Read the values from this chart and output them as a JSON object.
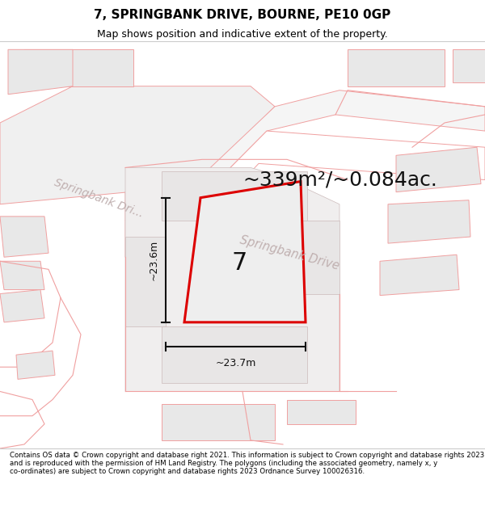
{
  "title": "7, SPRINGBANK DRIVE, BOURNE, PE10 0GP",
  "subtitle": "Map shows position and indicative extent of the property.",
  "area_text": "~339m²/~0.084ac.",
  "label_7": "7",
  "dim_height": "~23.6m",
  "dim_width": "~23.7m",
  "road_label_upper": "Springbank Dri...",
  "road_label_lower": "Springbank Drive",
  "footer": "Contains OS data © Crown copyright and database right 2021. This information is subject to Crown copyright and database rights 2023 and is reproduced with the permission of HM Land Registry. The polygons (including the associated geometry, namely x, y co-ordinates) are subject to Crown copyright and database rights 2023 Ordnance Survey 100026316.",
  "bg_color": "#ffffff",
  "map_bg": "#ffffff",
  "building_fill": "#e8e8e8",
  "building_edge": "#d0b8b8",
  "road_fill": "#ffffff",
  "road_edge": "#d0b0b0",
  "pink_line": "#f0a0a0",
  "plot_fill": "#eeeeee",
  "plot_border": "#dd0000",
  "dim_color": "#111111",
  "road_text_color": "#c0b0b0",
  "title_color": "#000000",
  "footer_color": "#000000",
  "separator_color": "#cccccc",
  "title_fontsize": 11,
  "subtitle_fontsize": 9,
  "area_fontsize": 18,
  "label_fontsize": 22,
  "road_fontsize": 10,
  "dim_fontsize": 9,
  "footer_fontsize": 6.2
}
